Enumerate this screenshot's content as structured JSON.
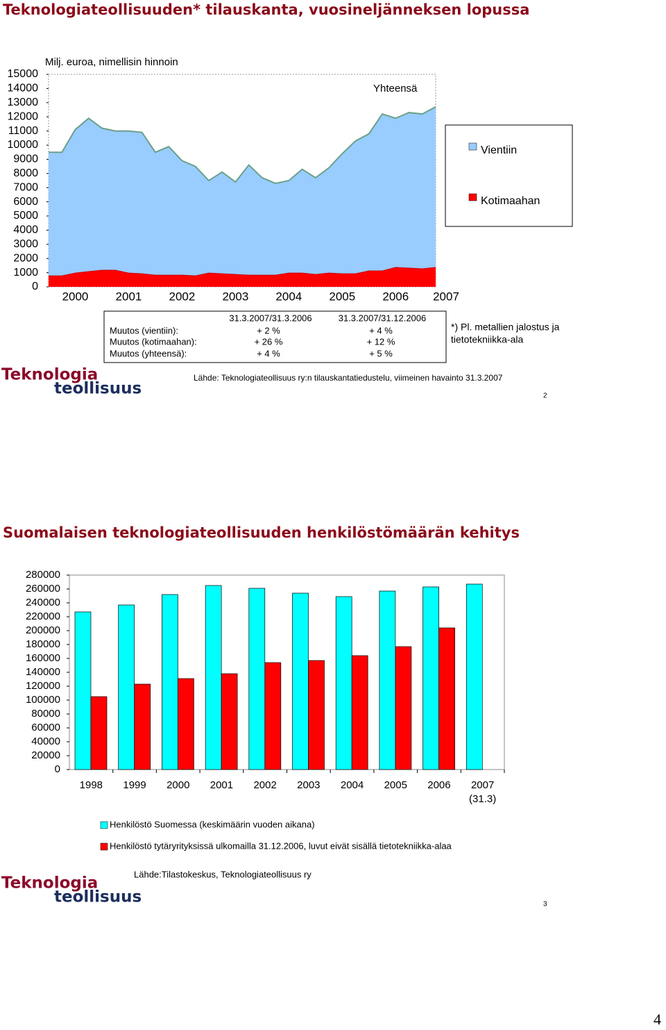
{
  "chart_data": [
    {
      "type": "area",
      "stacked": true,
      "title": "Teknologiateollisuuden* tilauskanta, vuosineljänneksen lopussa",
      "y_label": "Milj. euroa, nimellisin hinnoin",
      "annotation": "Yhteensä",
      "categories": [
        null,
        null,
        "2000",
        null,
        null,
        null,
        "2001",
        null,
        null,
        null,
        "2002",
        null,
        null,
        null,
        "2003",
        null,
        null,
        null,
        "2004",
        null,
        null,
        null,
        "2005",
        null,
        null,
        null,
        "2006",
        null,
        null,
        "2007"
      ],
      "series": [
        {
          "name": "Kotimaahan",
          "color": "#ff0000",
          "values": [
            800,
            800,
            1000,
            1100,
            1200,
            1200,
            1000,
            950,
            850,
            850,
            850,
            800,
            1000,
            950,
            900,
            850,
            850,
            850,
            1000,
            1000,
            900,
            1000,
            950,
            950,
            1150,
            1150,
            1400,
            1350,
            1300,
            1400
          ]
        },
        {
          "name": "Vientiin",
          "color": "#99ccff",
          "values": [
            8700,
            8700,
            10100,
            10800,
            10000,
            9800,
            10000,
            9950,
            8650,
            9050,
            8050,
            7700,
            6500,
            7150,
            6500,
            7750,
            6850,
            6450,
            6500,
            7300,
            6800,
            7400,
            8450,
            9350,
            9650,
            11050,
            10500,
            10950,
            10900,
            11300
          ]
        }
      ],
      "ylim": [
        0,
        15000
      ],
      "yticks": [
        0,
        1000,
        2000,
        3000,
        4000,
        5000,
        6000,
        7000,
        8000,
        9000,
        10000,
        11000,
        12000,
        13000,
        14000,
        15000
      ],
      "legend": "right"
    },
    {
      "type": "bar",
      "title": "Suomalaisen teknologiateollisuuden henkilöstömäärän kehitys",
      "categories": [
        "1998",
        "1999",
        "2000",
        "2001",
        "2002",
        "2003",
        "2004",
        "2005",
        "2006",
        "2007 (31.3)"
      ],
      "series": [
        {
          "name": "Henkilöstö Suomessa (keskimäärin vuoden aikana)",
          "color": "#00ffff",
          "values": [
            227000,
            237000,
            252000,
            265000,
            261000,
            254000,
            249000,
            257000,
            263000,
            267000
          ]
        },
        {
          "name": "Henkilöstö tytäryrityksissä ulkomailla 31.12.2006, luvut eivät sisällä tietotekniikka-alaa",
          "color": "#ff0000",
          "values": [
            105000,
            123000,
            131000,
            138000,
            154000,
            157000,
            164000,
            177000,
            204000,
            null
          ]
        }
      ],
      "ylim": [
        0,
        280000
      ],
      "yticks": [
        0,
        20000,
        40000,
        60000,
        80000,
        100000,
        120000,
        140000,
        160000,
        180000,
        200000,
        220000,
        240000,
        260000,
        280000
      ],
      "legend": "bottom"
    }
  ],
  "logo": [
    "Teknologia",
    "teollisuus"
  ],
  "slide1": {
    "table": {
      "header": [
        "31.3.2007/31.3.2006",
        "31.3.2007/31.12.2006"
      ],
      "rows": [
        [
          "Muutos (vientiin):",
          "+ 2 %",
          "+ 4 %"
        ],
        [
          "Muutos (kotimaahan):",
          "+ 26 %",
          "+ 12 %"
        ],
        [
          "Muutos (yhteensä):",
          "+ 4 %",
          "+ 5 %"
        ]
      ]
    },
    "footnote": [
      "*) Pl. metallien jalostus ja",
      "tietotekniikka-ala"
    ],
    "source": "Lähde: Teknologiateollisuus ry:n tilauskantatiedustelu, viimeinen havainto 31.3.2007",
    "page_number": 2
  },
  "slide2": {
    "source": "Lähde:Tilastokeskus, Teknologiateollisuus ry",
    "page_number": 3
  },
  "page_number": 4
}
